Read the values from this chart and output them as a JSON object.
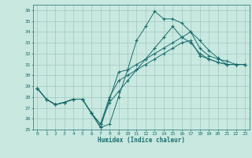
{
  "title": "",
  "xlabel": "Humidex (Indice chaleur)",
  "ylabel": "",
  "background_color": "#c8e8e0",
  "grid_color": "#a0c8c0",
  "line_color": "#1a6e6e",
  "xlim": [
    -0.5,
    23.5
  ],
  "ylim": [
    25,
    36.5
  ],
  "yticks": [
    25,
    26,
    27,
    28,
    29,
    30,
    31,
    32,
    33,
    34,
    35,
    36
  ],
  "xticks": [
    0,
    1,
    2,
    3,
    4,
    5,
    6,
    7,
    8,
    9,
    10,
    11,
    12,
    13,
    14,
    15,
    16,
    17,
    18,
    19,
    20,
    21,
    22,
    23
  ],
  "series": [
    [
      28.8,
      27.8,
      27.3,
      27.5,
      27.8,
      27.8,
      26.5,
      25.2,
      25.5,
      28.0,
      30.5,
      33.2,
      34.5,
      35.9,
      35.2,
      35.2,
      34.8,
      34.0,
      33.2,
      32.3,
      31.6,
      31.0,
      31.0,
      31.0
    ],
    [
      28.8,
      27.8,
      27.3,
      27.5,
      27.8,
      27.8,
      26.5,
      25.5,
      28.0,
      29.5,
      30.0,
      30.5,
      31.0,
      31.5,
      32.0,
      32.5,
      33.0,
      33.2,
      31.8,
      31.5,
      31.2,
      31.0,
      31.0,
      31.0
    ],
    [
      28.8,
      27.8,
      27.3,
      27.5,
      27.8,
      27.8,
      26.5,
      25.5,
      27.5,
      28.5,
      29.5,
      30.5,
      31.5,
      32.5,
      33.5,
      34.5,
      33.5,
      33.0,
      32.0,
      31.5,
      31.2,
      31.0,
      31.0,
      31.0
    ],
    [
      28.8,
      27.8,
      27.3,
      27.5,
      27.8,
      27.8,
      26.5,
      25.2,
      27.8,
      30.3,
      30.5,
      31.0,
      31.5,
      32.0,
      32.5,
      33.0,
      33.5,
      34.0,
      32.5,
      31.8,
      31.5,
      31.3,
      31.0,
      31.0
    ]
  ]
}
